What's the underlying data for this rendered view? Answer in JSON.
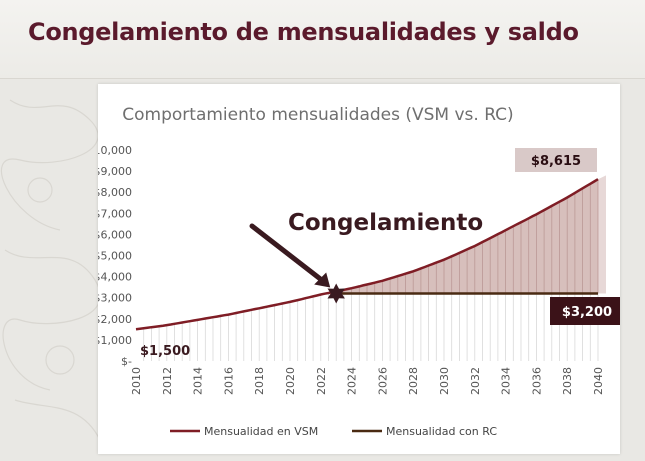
{
  "page": {
    "title": "Congelamiento de mensualidades y saldo"
  },
  "colors": {
    "vsm": "#7f1d25",
    "rc": "#4a2a12",
    "callout_bg": "#3b1218",
    "fill": "#c9a9a6"
  },
  "annotations": {
    "freeze_label": "Congelamiento",
    "start_value": "$1,500",
    "end_vsm_value": "$8,615",
    "rc_value": "$3,200"
  },
  "chart_data": {
    "type": "line",
    "title": "Comportamiento mensualidades (VSM vs. RC)",
    "x_ticks": [
      "2010",
      "2012",
      "2014",
      "2016",
      "2018",
      "2020",
      "2022",
      "2024",
      "2026",
      "2028",
      "2030",
      "2032",
      "2034",
      "2036",
      "2038",
      "2040"
    ],
    "y_ticks": [
      "$10,000",
      "$9,000",
      "$8,000",
      "$7,000",
      "$6,000",
      "$5,000",
      "$4,000",
      "$3,000",
      "$2,000",
      "$1,000",
      "$-"
    ],
    "xlim": [
      2010,
      2040
    ],
    "ylim": [
      0,
      10000
    ],
    "grid": false,
    "legend_position": "bottom",
    "freeze_year": 2023,
    "series": [
      {
        "name": "Mensualidad en VSM",
        "x": [
          2010,
          2012,
          2014,
          2016,
          2018,
          2020,
          2022,
          2023,
          2024,
          2026,
          2028,
          2030,
          2032,
          2034,
          2036,
          2038,
          2040
        ],
        "values": [
          1500,
          1700,
          1950,
          2200,
          2500,
          2800,
          3150,
          3300,
          3450,
          3800,
          4250,
          4800,
          5450,
          6200,
          6950,
          7750,
          8615
        ]
      },
      {
        "name": "Mensualidad con RC",
        "x": [
          2023,
          2040
        ],
        "values": [
          3200,
          3200
        ]
      }
    ]
  }
}
